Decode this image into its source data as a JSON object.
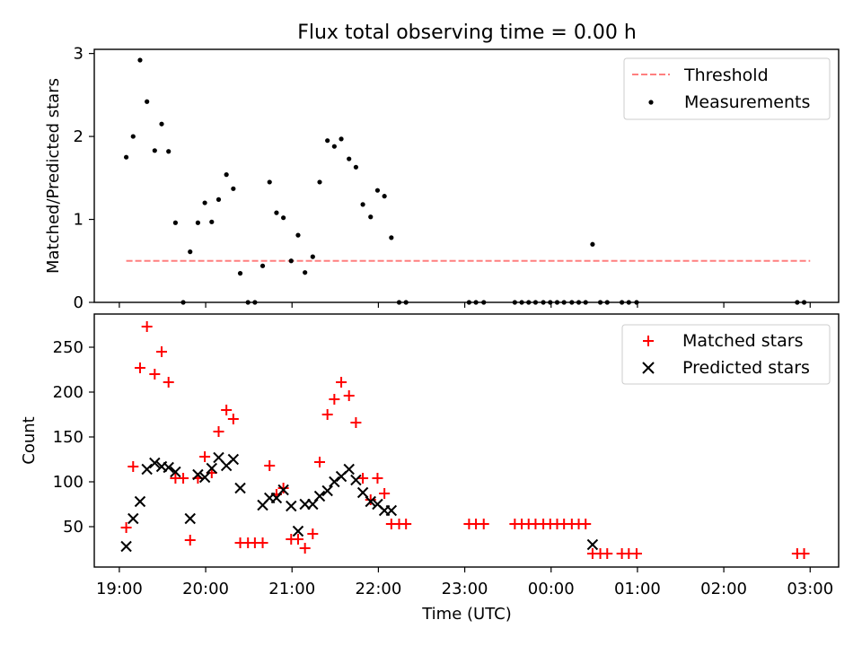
{
  "title": "Flux total observing time = 0.00 h",
  "xlabel": "Time (UTC)",
  "colors": {
    "threshold": "#ff7f7f",
    "measurement": "#000000",
    "matched": "#ff0000",
    "predicted": "#000000"
  },
  "x_ticks": [
    {
      "t": 19.0,
      "label": "19:00"
    },
    {
      "t": 20.0,
      "label": "20:00"
    },
    {
      "t": 21.0,
      "label": "21:00"
    },
    {
      "t": 22.0,
      "label": "22:00"
    },
    {
      "t": 23.0,
      "label": "23:00"
    },
    {
      "t": 24.0,
      "label": "00:00"
    },
    {
      "t": 25.0,
      "label": "01:00"
    },
    {
      "t": 26.0,
      "label": "02:00"
    },
    {
      "t": 27.0,
      "label": "03:00"
    }
  ],
  "chart_data": [
    {
      "type": "scatter",
      "ylabel": "Matched/Predicted stars",
      "xlim": [
        18.71,
        27.33
      ],
      "ylim": [
        0,
        3.05
      ],
      "y_ticks": [
        0,
        1,
        2,
        3
      ],
      "legend": "top-right",
      "threshold": {
        "name": "Threshold",
        "x": [
          19.08,
          27.0
        ],
        "y": 0.5
      },
      "series": [
        {
          "name": "Measurements",
          "x": [
            19.08,
            19.16,
            19.24,
            19.32,
            19.41,
            19.49,
            19.57,
            19.65,
            19.74,
            19.82,
            19.91,
            19.99,
            20.07,
            20.15,
            20.24,
            20.32,
            20.4,
            20.49,
            20.57,
            20.66,
            20.74,
            20.82,
            20.9,
            20.99,
            21.07,
            21.15,
            21.24,
            21.32,
            21.41,
            21.49,
            21.57,
            21.66,
            21.74,
            21.82,
            21.91,
            21.99,
            22.07,
            22.15,
            22.24,
            22.32,
            23.05,
            23.13,
            23.22,
            23.58,
            23.66,
            23.74,
            23.82,
            23.91,
            23.99,
            24.07,
            24.15,
            24.24,
            24.32,
            24.4,
            24.48,
            24.57,
            24.65,
            24.82,
            24.9,
            24.99,
            26.85,
            26.93
          ],
          "y": [
            1.75,
            2.0,
            2.92,
            2.42,
            1.83,
            2.15,
            1.82,
            0.96,
            0.0,
            0.61,
            0.96,
            1.2,
            0.97,
            1.24,
            1.54,
            1.37,
            0.35,
            0.0,
            0.0,
            0.44,
            1.45,
            1.08,
            1.02,
            0.5,
            0.81,
            0.36,
            0.55,
            1.45,
            1.95,
            1.88,
            1.97,
            1.73,
            1.63,
            1.18,
            1.03,
            1.35,
            1.28,
            0.78,
            0.0,
            0.0,
            0.0,
            0.0,
            0.0,
            0.0,
            0.0,
            0.0,
            0.0,
            0.0,
            0.0,
            0.0,
            0.0,
            0.0,
            0.0,
            0.0,
            0.7,
            0.0,
            0.0,
            0.0,
            0.0,
            0.0,
            0.0,
            0.0
          ]
        }
      ]
    },
    {
      "type": "scatter",
      "ylabel": "Count",
      "xlim": [
        18.71,
        27.33
      ],
      "ylim": [
        5,
        287
      ],
      "y_ticks": [
        50,
        100,
        150,
        200,
        250
      ],
      "legend": "top-right",
      "series": [
        {
          "name": "Matched stars",
          "marker": "plus",
          "x": [
            19.08,
            19.16,
            19.24,
            19.32,
            19.41,
            19.49,
            19.57,
            19.65,
            19.74,
            19.82,
            19.91,
            19.99,
            20.07,
            20.15,
            20.24,
            20.32,
            20.4,
            20.49,
            20.57,
            20.66,
            20.74,
            20.82,
            20.9,
            20.99,
            21.07,
            21.15,
            21.24,
            21.32,
            21.41,
            21.49,
            21.57,
            21.66,
            21.74,
            21.82,
            21.91,
            21.99,
            22.07,
            22.15,
            22.24,
            22.32,
            23.05,
            23.13,
            23.22,
            23.58,
            23.66,
            23.74,
            23.82,
            23.91,
            23.99,
            24.07,
            24.15,
            24.24,
            24.32,
            24.4,
            24.48,
            24.57,
            24.65,
            24.82,
            24.9,
            24.99,
            26.85,
            26.93
          ],
          "y": [
            49,
            117,
            227,
            273,
            220,
            245,
            211,
            104,
            104,
            35,
            104,
            128,
            110,
            156,
            180,
            170,
            32,
            32,
            32,
            32,
            118,
            86,
            93,
            36,
            36,
            26,
            42,
            122,
            175,
            192,
            211,
            196,
            166,
            104,
            80,
            104,
            87,
            53,
            53,
            53,
            53,
            53,
            53,
            53,
            53,
            53,
            53,
            53,
            53,
            53,
            53,
            53,
            53,
            53,
            20,
            20,
            20,
            20,
            20,
            20,
            20,
            20
          ]
        },
        {
          "name": "Predicted stars",
          "marker": "x",
          "x": [
            19.08,
            19.16,
            19.24,
            19.32,
            19.41,
            19.49,
            19.57,
            19.65,
            19.82,
            19.91,
            19.99,
            20.07,
            20.15,
            20.24,
            20.32,
            20.4,
            20.66,
            20.74,
            20.82,
            20.9,
            20.99,
            21.07,
            21.15,
            21.24,
            21.32,
            21.41,
            21.49,
            21.57,
            21.66,
            21.74,
            21.82,
            21.91,
            21.99,
            22.07,
            22.15,
            24.48
          ],
          "y": [
            28,
            59,
            78,
            114,
            121,
            117,
            116,
            111,
            59,
            108,
            105,
            115,
            127,
            118,
            125,
            93,
            74,
            82,
            82,
            91,
            73,
            45,
            75,
            75,
            84,
            90,
            100,
            106,
            114,
            102,
            88,
            78,
            75,
            68,
            68,
            30
          ]
        }
      ]
    }
  ]
}
